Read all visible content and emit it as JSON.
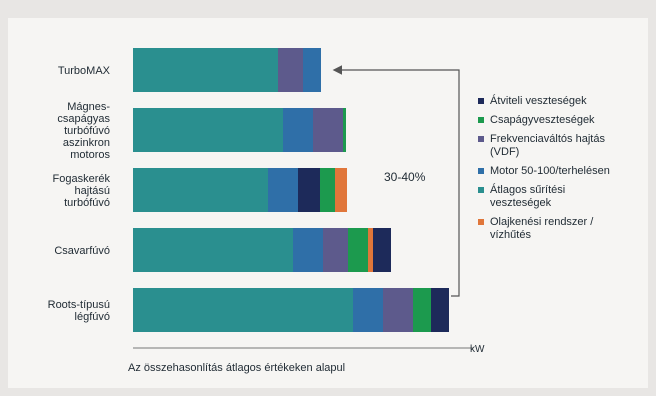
{
  "chart_data": {
    "type": "bar",
    "orientation": "horizontal",
    "stacked": true,
    "categories": [
      [
        "TurboMAX"
      ],
      [
        "Mágnes-",
        "csapágyas",
        "turbófúvó",
        "aszinkron",
        "motoros"
      ],
      [
        "Fogaskerék",
        "hajtású",
        "turbófúvó"
      ],
      [
        "Csavarfúvó"
      ],
      [
        "Roots-típusú",
        "légfúvó"
      ]
    ],
    "series": [
      {
        "name": "Átlagos sűrítési veszteségek",
        "color": "#2a8f8f",
        "values": [
          145,
          150,
          135,
          160,
          220
        ]
      },
      {
        "name": "Motor 50-100/terhelésen",
        "color": "#2f6fa8",
        "values": [
          0,
          30,
          30,
          30,
          30
        ]
      },
      {
        "name": "Frekvenciaváltós hajtás (VDF)",
        "color": "#5d5a8c",
        "values": [
          25,
          30,
          0,
          25,
          30
        ]
      },
      {
        "name": "Motor 50-100/terhelésen",
        "color": "#2f6fa8",
        "values": [
          18,
          0,
          0,
          0,
          0
        ]
      },
      {
        "name": "Átviteli veszteségek",
        "color": "#1d2a5a",
        "values": [
          0,
          0,
          22,
          0,
          0
        ]
      },
      {
        "name": "Csapágyveszteségek",
        "color": "#1c9a4e",
        "values": [
          0,
          3,
          15,
          20,
          18
        ]
      },
      {
        "name": "Olajkenési rendszer / vízhűtés",
        "color": "#e0763a",
        "values": [
          0,
          0,
          12,
          5,
          0
        ]
      },
      {
        "name": "Átviteli veszteségek",
        "color": "#1d2a5a",
        "values": [
          0,
          0,
          0,
          18,
          18
        ]
      }
    ],
    "annotation": "30-40%",
    "xlabel": "kW",
    "xlim": [
      0,
      330
    ],
    "grid": false,
    "legend": {
      "position": "right",
      "entries": [
        {
          "label": [
            "Átviteli veszteségek"
          ],
          "color": "#1d2a5a"
        },
        {
          "label": [
            "Csapágyveszteségek"
          ],
          "color": "#1c9a4e"
        },
        {
          "label": [
            "Frekvenciaváltós hajtás",
            "(VDF)"
          ],
          "color": "#5d5a8c"
        },
        {
          "label": [
            "Motor 50-100/terhelésen"
          ],
          "color": "#2f6fa8"
        },
        {
          "label": [
            "Átlagos sűrítési",
            "veszteségek"
          ],
          "color": "#2a8f8f"
        },
        {
          "label": [
            "Olajkenési rendszer /",
            "vízhűtés"
          ],
          "color": "#e0763a"
        }
      ]
    },
    "footnote": "Az összehasonlítás átlagos értékeken alapul"
  }
}
